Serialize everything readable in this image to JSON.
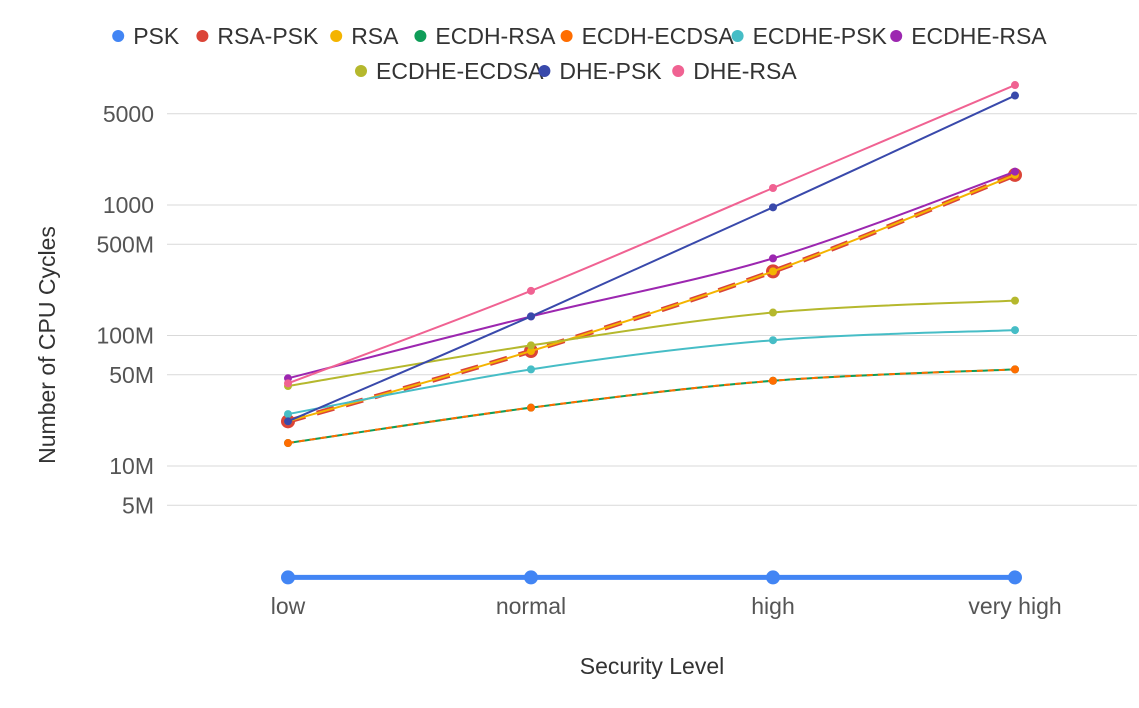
{
  "chart_data": {
    "type": "line",
    "title": "",
    "xlabel": "Security Level",
    "ylabel": "Number of CPU Cycles",
    "y_scale": "log",
    "grid": true,
    "legend_position": "top",
    "categories": [
      "low",
      "normal",
      "high",
      "very high"
    ],
    "y_ticks": [
      {
        "value": 5000,
        "label": "5000"
      },
      {
        "value": 1000,
        "label": "1000"
      },
      {
        "value": 500,
        "label": "500M"
      },
      {
        "value": 100,
        "label": "100M"
      },
      {
        "value": 50,
        "label": "50M"
      },
      {
        "value": 10,
        "label": "10M"
      },
      {
        "value": 5,
        "label": "5M"
      }
    ],
    "series": [
      {
        "name": "PSK",
        "color": "#4285f4",
        "values": [
          1.4,
          1.4,
          1.4,
          1.4
        ],
        "line_width": 5,
        "dash": "",
        "marker_size": 7
      },
      {
        "name": "RSA-PSK",
        "color": "#db4437",
        "values": [
          22,
          76,
          310,
          1700
        ],
        "line_width": 5,
        "dash": "18,12",
        "marker_size": 7
      },
      {
        "name": "RSA",
        "color": "#f4b400",
        "values": [
          22,
          76,
          310,
          1700
        ],
        "line_width": 2,
        "dash": "",
        "marker_size": 4
      },
      {
        "name": "ECDH-RSA",
        "color": "#0f9d58",
        "values": [
          15,
          28,
          45,
          55
        ],
        "line_width": 2,
        "dash": "",
        "marker_size": 4
      },
      {
        "name": "ECDH-ECDSA",
        "color": "#ff6d00",
        "values": [
          15,
          28,
          45,
          55
        ],
        "line_width": 2,
        "dash": "6,5",
        "marker_size": 4
      },
      {
        "name": "ECDHE-PSK",
        "color": "#46bdc6",
        "values": [
          25,
          55,
          92,
          110
        ],
        "line_width": 2,
        "dash": "",
        "marker_size": 4
      },
      {
        "name": "ECDHE-RSA",
        "color": "#9c27b0",
        "values": [
          47,
          140,
          390,
          1800
        ],
        "line_width": 2,
        "dash": "",
        "marker_size": 4
      },
      {
        "name": "ECDHE-ECDSA",
        "color": "#b5b82d",
        "values": [
          41,
          84,
          150,
          185
        ],
        "line_width": 2,
        "dash": "",
        "marker_size": 4
      },
      {
        "name": "DHE-PSK",
        "color": "#3949ab",
        "values": [
          22,
          140,
          960,
          6900
        ],
        "line_width": 2,
        "dash": "",
        "marker_size": 4
      },
      {
        "name": "DHE-RSA",
        "color": "#f06292",
        "values": [
          43,
          220,
          1350,
          8300
        ],
        "line_width": 2,
        "dash": "",
        "marker_size": 4
      }
    ]
  }
}
